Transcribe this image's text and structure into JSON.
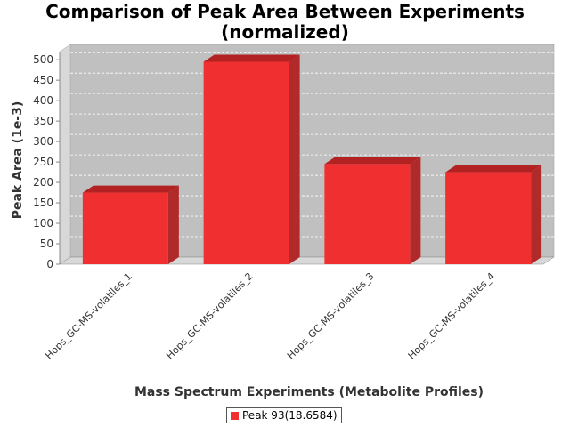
{
  "chart_data": {
    "type": "bar",
    "title_line1": "Comparison of Peak Area Between Experiments",
    "title_line2": "(normalized)",
    "xlabel": "Mass Spectrum Experiments (Metabolite Profiles)",
    "ylabel": "Peak Area (1e-3)",
    "categories": [
      "Hops_GC-MS-volatiles_1",
      "Hops_GC-MS-volatiles_2",
      "Hops_GC-MS-volatiles_3",
      "Hops_GC-MS-volatiles_4"
    ],
    "series": [
      {
        "name": "Peak 93(18.6584)",
        "values": [
          175,
          495,
          245,
          225
        ]
      }
    ],
    "ylim": [
      0,
      520
    ],
    "yticks": [
      0,
      50,
      100,
      150,
      200,
      250,
      300,
      350,
      400,
      450,
      500
    ],
    "grid": true,
    "legend_position": "bottom",
    "colors": {
      "bar": "#f03030",
      "bar_top": "#b22222",
      "bar_side": "#b02a2a",
      "plot_bg": "#c0c0c0",
      "wall": "#d8d8d8"
    }
  }
}
